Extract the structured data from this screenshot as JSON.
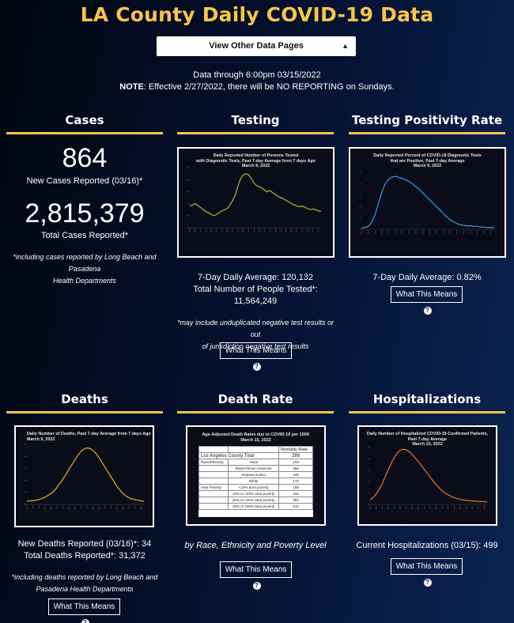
{
  "page": {
    "title": "LA County Daily COVID-19 Data",
    "select_value": "View Other Data Pages",
    "data_through": "Data through 6:00pm 03/15/2022",
    "note_label": "NOTE",
    "note_text": ": Effective 2/27/2022, there will be NO REPORTING on Sundays."
  },
  "cases": {
    "title": "Cases",
    "new_value": "864",
    "new_label": "New Cases Reported (03/16)*",
    "total_value": "2,815,379",
    "total_label": "Total Cases Reported*",
    "note_line1": "*including cases reported by Long Beach and Pasadena",
    "note_line2": "Health Departments"
  },
  "testing": {
    "title": "Testing",
    "chart_title_1": "Daily Reported Number of Persons Tested",
    "chart_title_2": "with Diagnostic Tests, Past 7-day Average from 7 days Ago",
    "chart_title_3": "March 9, 2022",
    "avg_label": "7-Day Daily Average: 120,132",
    "total_label": "Total Number of People Tested*:",
    "total_value": "11,564,249",
    "note_line1": "*may include unduplicated negative test results or out",
    "note_line2": "of jurisdiction negative test results",
    "button": "What This Means"
  },
  "positivity": {
    "title": "Testing Positivity Rate",
    "chart_title_1": "Daily Reported Percent of COVID-19 Diagnostic Tests",
    "chart_title_2": "that are Positive, Past 7-day Average",
    "chart_title_3": "March 9, 2022",
    "avg_label": "7-Day Daily Average: 0.82%",
    "button": "What This Means"
  },
  "deaths": {
    "title": "Deaths",
    "chart_title_1": "Daily Number of Deaths, Past 7-day Average from 7 days Ago",
    "chart_title_2": "March 9, 2022",
    "new_label": "New Deaths Reported (03/16)*: 34",
    "total_label": "Total Deaths Reported*: 31,372",
    "note_line1": "*including deaths reported by Long Beach and",
    "note_line2": "Pasadena Health Departments",
    "button": "What This Means"
  },
  "death_rate": {
    "title": "Death Rate",
    "chart_title_1": "Age-Adjusted Death Rates due to COVID-19 per 100K",
    "chart_title_2": "March 15, 2022",
    "table_header": "Mortality Rate",
    "table_total_label": "Los Angeles County Total",
    "table_total_value": "286",
    "table_rows": [
      {
        "group": "Race/Ethnicity",
        "label": "Asian",
        "value": "193"
      },
      {
        "group": "",
        "label": "Black/African American",
        "value": "366"
      },
      {
        "group": "",
        "label": "Hispanic/Latino",
        "value": "445"
      },
      {
        "group": "",
        "label": "White",
        "value": "172"
      },
      {
        "group": "Area Poverty",
        "label": "<10% area poverty",
        "value": "188"
      },
      {
        "group": "",
        "label": "10% to <20% area poverty",
        "value": "234"
      },
      {
        "group": "",
        "label": "20% to <30% area poverty",
        "value": "384"
      },
      {
        "group": "",
        "label": "30% to 100% area poverty",
        "value": "510"
      }
    ],
    "subtitle": "by Race, Ethnicity and Poverty Level",
    "button": "What This Means"
  },
  "hospitalizations": {
    "title": "Hospitalizations",
    "chart_title_1": "Daily Number of Hospitalized COVID-19 Confirmed Patients,",
    "chart_title_2": "Past 7-day Average",
    "chart_title_3": "March 15, 2022",
    "current_label": "Current Hospitalizations (03/15): 499",
    "button": "What This Means"
  },
  "colors": {
    "accent": "#f7c548",
    "testing_line": "#8fb33a",
    "positivity_line": "#3a8fd6",
    "deaths_line": "#d8a321",
    "hosp_line": "#d9702a"
  },
  "chart_data": [
    {
      "type": "line",
      "name": "testing",
      "values": [
        0.36,
        0.38,
        0.4,
        0.37,
        0.34,
        0.3,
        0.27,
        0.25,
        0.22,
        0.2,
        0.22,
        0.25,
        0.28,
        0.3,
        0.32,
        0.38,
        0.45,
        0.55,
        0.7,
        0.82,
        0.88,
        0.9,
        0.88,
        0.82,
        0.74,
        0.7,
        0.68,
        0.66,
        0.62,
        0.6,
        0.62,
        0.58,
        0.55,
        0.52,
        0.5,
        0.48,
        0.45,
        0.43,
        0.4,
        0.38,
        0.36,
        0.35,
        0.36,
        0.34,
        0.32,
        0.3,
        0.31,
        0.3,
        0.28,
        0.27
      ]
    },
    {
      "type": "line",
      "name": "positivity",
      "values": [
        0.02,
        0.03,
        0.05,
        0.12,
        0.25,
        0.45,
        0.65,
        0.8,
        0.88,
        0.92,
        0.93,
        0.91,
        0.89,
        0.87,
        0.84,
        0.8,
        0.75,
        0.7,
        0.64,
        0.58,
        0.52,
        0.46,
        0.4,
        0.34,
        0.28,
        0.22,
        0.17,
        0.13,
        0.1,
        0.08,
        0.07,
        0.06,
        0.06,
        0.05,
        0.05,
        0.04,
        0.04,
        0.03,
        0.03,
        0.03
      ]
    },
    {
      "type": "line",
      "name": "deaths",
      "values": [
        0.05,
        0.06,
        0.06,
        0.07,
        0.08,
        0.1,
        0.12,
        0.15,
        0.18,
        0.22,
        0.28,
        0.35,
        0.42,
        0.5,
        0.58,
        0.66,
        0.74,
        0.82,
        0.88,
        0.92,
        0.94,
        0.93,
        0.9,
        0.85,
        0.78,
        0.7,
        0.62,
        0.54,
        0.46,
        0.38,
        0.3,
        0.24,
        0.18,
        0.14,
        0.11,
        0.09,
        0.08,
        0.07,
        0.06,
        0.05
      ]
    },
    {
      "type": "line",
      "name": "hospitalizations",
      "values": [
        0.08,
        0.12,
        0.18,
        0.26,
        0.36,
        0.48,
        0.6,
        0.72,
        0.82,
        0.9,
        0.95,
        0.97,
        0.96,
        0.93,
        0.88,
        0.82,
        0.76,
        0.69,
        0.62,
        0.55,
        0.48,
        0.41,
        0.35,
        0.29,
        0.24,
        0.2,
        0.17,
        0.14,
        0.12,
        0.1,
        0.09,
        0.08,
        0.07,
        0.07,
        0.06,
        0.06,
        0.05,
        0.05,
        0.05,
        0.04
      ]
    }
  ]
}
